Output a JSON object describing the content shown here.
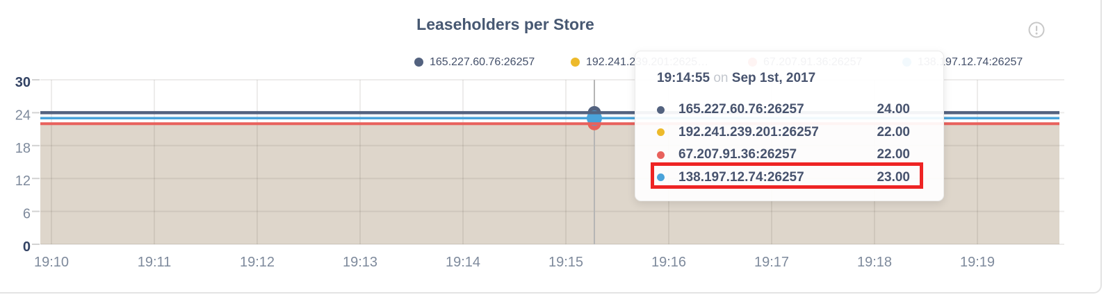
{
  "panel": {
    "title": "Leaseholders per Store"
  },
  "colors": {
    "title": "#475872",
    "axis_strong": "#334364",
    "axis_light": "#7e8a9c",
    "fill": "#ded6cb",
    "hover_line": "#b5b5b5",
    "panel_border": "#e3e3e3",
    "info_icon": "#c8c8c8",
    "highlight": "#ee2424"
  },
  "legend": {
    "items": [
      {
        "label": "165.227.60.76:26257",
        "color": "#53627f"
      },
      {
        "label": "192.241.239.201:2625…",
        "color": "#edba2b"
      },
      {
        "label": "67.207.91.36:26257",
        "color": "#e8615c"
      },
      {
        "label": "138.197.12.74:26257",
        "color": "#4aa3da"
      }
    ]
  },
  "tooltip": {
    "time": "19:14:55",
    "conjunction": "on",
    "date": "Sep 1st, 2017",
    "highlight_color": "#ee2424",
    "rows": [
      {
        "label": "165.227.60.76:26257",
        "value": "24.00",
        "color": "#53627f",
        "highlighted": false
      },
      {
        "label": "192.241.239.201:26257",
        "value": "22.00",
        "color": "#edba2b",
        "highlighted": false
      },
      {
        "label": "67.207.91.36:26257",
        "value": "22.00",
        "color": "#e8615c",
        "highlighted": false
      },
      {
        "label": "138.197.12.74:26257",
        "value": "23.00",
        "color": "#4aa3da",
        "highlighted": true
      }
    ]
  },
  "chart_data": {
    "type": "line",
    "title": "Leaseholders per Store",
    "xlabel": "",
    "ylabel": "",
    "x": [
      "19:10",
      "19:11",
      "19:12",
      "19:13",
      "19:14",
      "19:15",
      "19:16",
      "19:17",
      "19:18",
      "19:19"
    ],
    "y_ticks": [
      0,
      6,
      12,
      18,
      24,
      30
    ],
    "ylim": [
      0,
      30
    ],
    "grid": true,
    "legend_position": "top",
    "fill_color": "#ded6cb",
    "series": [
      {
        "name": "165.227.60.76:26257",
        "color": "#53627f",
        "values": [
          24,
          24,
          24,
          24,
          24,
          24,
          24,
          24,
          24,
          24
        ]
      },
      {
        "name": "192.241.239.201:26257",
        "color": "#edba2b",
        "values": [
          22,
          22,
          22,
          22,
          22,
          22,
          22,
          22,
          22,
          22
        ]
      },
      {
        "name": "67.207.91.36:26257",
        "color": "#e8615c",
        "values": [
          22,
          22,
          22,
          22,
          22,
          22,
          22,
          22,
          22,
          22
        ]
      },
      {
        "name": "138.197.12.74:26257",
        "color": "#4aa3da",
        "values": [
          23,
          23,
          23,
          23,
          23,
          23,
          23,
          23,
          23,
          23
        ]
      }
    ],
    "hover": {
      "time": "19:14:55",
      "date": "Sep 1st, 2017",
      "values": [
        24.0,
        22.0,
        22.0,
        23.0
      ]
    }
  }
}
